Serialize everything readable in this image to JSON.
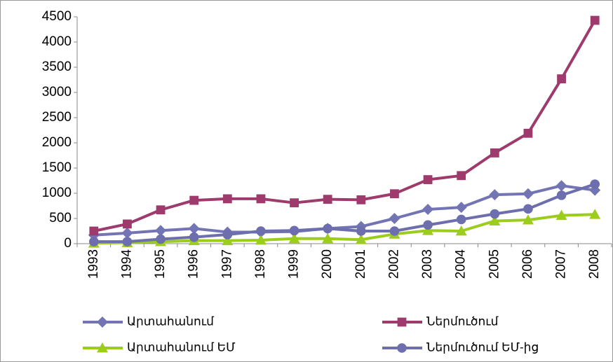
{
  "chart_data": {
    "type": "line",
    "categories": [
      "1993",
      "1994",
      "1995",
      "1996",
      "1997",
      "1998",
      "1999",
      "2000",
      "2001",
      "2002",
      "2003",
      "2004",
      "2005",
      "2006",
      "2007",
      "2008"
    ],
    "series": [
      {
        "name": "Արտահանում",
        "color": "#7374b4",
        "marker": "diamond",
        "values": [
          170,
          210,
          260,
          300,
          230,
          230,
          240,
          300,
          340,
          500,
          680,
          720,
          970,
          990,
          1150,
          1060
        ]
      },
      {
        "name": "Ներմուծում",
        "color": "#9e3b6c",
        "marker": "square",
        "values": [
          250,
          390,
          670,
          860,
          890,
          890,
          810,
          880,
          870,
          990,
          1270,
          1350,
          1800,
          2190,
          3270,
          4430
        ]
      },
      {
        "name": "Արտահանում ԵՄ",
        "color": "#9ccc1c",
        "marker": "triangle",
        "values": [
          10,
          20,
          40,
          60,
          60,
          70,
          100,
          100,
          80,
          190,
          260,
          250,
          450,
          470,
          560,
          580
        ]
      },
      {
        "name": "Ներմուծում ԵՄ-ից",
        "color": "#6c6eae",
        "marker": "circle",
        "values": [
          40,
          40,
          90,
          130,
          180,
          250,
          260,
          300,
          250,
          250,
          370,
          480,
          590,
          690,
          960,
          1180
        ]
      }
    ],
    "ylim": [
      0,
      4500
    ],
    "yticks": [
      0,
      500,
      1000,
      1500,
      2000,
      2500,
      3000,
      3500,
      4000,
      4500
    ],
    "grid": false,
    "legend": "bottom"
  }
}
